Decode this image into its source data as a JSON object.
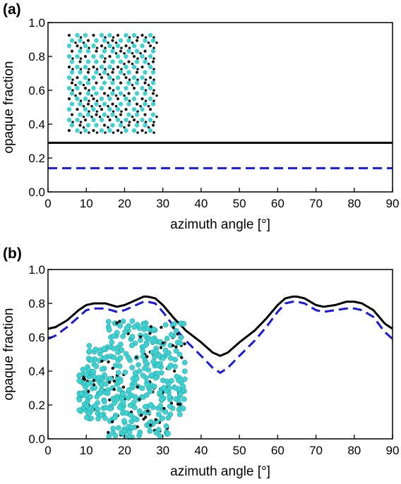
{
  "colors": {
    "solid_series": "#000000",
    "dashed_series": "#1a1adb",
    "atom_cyan": "#3ed2d2",
    "atom_black": "#151515"
  },
  "chart_data": [
    {
      "type": "line",
      "panel_label": "(a)",
      "xlabel": "azimuth angle [°]",
      "ylabel": "opaque fraction",
      "xlim": [
        0,
        90
      ],
      "ylim": [
        0,
        1.0
      ],
      "x_ticks": [
        "0",
        "10",
        "20",
        "30",
        "40",
        "50",
        "60",
        "70",
        "80",
        "90"
      ],
      "y_ticks": [
        "0.0",
        "0.2",
        "0.4",
        "0.6",
        "0.8",
        "1.0"
      ],
      "grid": false,
      "legend": "none",
      "inset": "crystal structure viewed along a high-symmetry axis (ordered atom columns), upper-left",
      "series": [
        {
          "style": "solid",
          "color": "#000000",
          "x": [
            0,
            90
          ],
          "y": [
            0.29,
            0.29
          ]
        },
        {
          "style": "dashed",
          "color": "#1a1adb",
          "x": [
            0,
            90
          ],
          "y": [
            0.14,
            0.14
          ]
        }
      ]
    },
    {
      "type": "line",
      "panel_label": "(b)",
      "xlabel": "azimuth angle [°]",
      "ylabel": "opaque fraction",
      "xlim": [
        0,
        90
      ],
      "ylim": [
        0,
        1.0
      ],
      "x_ticks": [
        "0",
        "10",
        "20",
        "30",
        "40",
        "50",
        "60",
        "70",
        "80",
        "90"
      ],
      "y_ticks": [
        "0.0",
        "0.2",
        "0.4",
        "0.6",
        "0.8",
        "1.0"
      ],
      "grid": false,
      "legend": "none",
      "inset": "crystal structure viewed off-axis (disordered projection), lower-left",
      "series": [
        {
          "style": "solid",
          "color": "#000000",
          "x": [
            0,
            2,
            5,
            8,
            10,
            12,
            15,
            18,
            20,
            22,
            25,
            26,
            28,
            30,
            33,
            36,
            40,
            43,
            45,
            47,
            50,
            54,
            57,
            60,
            62,
            64,
            65,
            67,
            70,
            72,
            75,
            78,
            80,
            82,
            85,
            88,
            90
          ],
          "y": [
            0.65,
            0.66,
            0.7,
            0.76,
            0.79,
            0.8,
            0.8,
            0.78,
            0.79,
            0.81,
            0.84,
            0.84,
            0.83,
            0.79,
            0.71,
            0.64,
            0.57,
            0.51,
            0.49,
            0.51,
            0.57,
            0.64,
            0.71,
            0.79,
            0.83,
            0.84,
            0.84,
            0.83,
            0.79,
            0.78,
            0.79,
            0.81,
            0.81,
            0.8,
            0.76,
            0.68,
            0.65
          ]
        },
        {
          "style": "dashed",
          "color": "#1a1adb",
          "x": [
            0,
            2,
            5,
            8,
            10,
            12,
            15,
            18,
            20,
            22,
            25,
            26,
            28,
            30,
            33,
            36,
            40,
            43,
            45,
            47,
            50,
            54,
            57,
            60,
            62,
            64,
            65,
            67,
            70,
            72,
            75,
            78,
            80,
            82,
            85,
            88,
            90
          ],
          "y": [
            0.59,
            0.61,
            0.66,
            0.72,
            0.76,
            0.77,
            0.77,
            0.75,
            0.76,
            0.78,
            0.81,
            0.81,
            0.8,
            0.75,
            0.66,
            0.58,
            0.49,
            0.42,
            0.39,
            0.42,
            0.49,
            0.58,
            0.66,
            0.75,
            0.8,
            0.81,
            0.81,
            0.8,
            0.76,
            0.75,
            0.76,
            0.77,
            0.77,
            0.76,
            0.72,
            0.63,
            0.59
          ]
        }
      ]
    }
  ]
}
